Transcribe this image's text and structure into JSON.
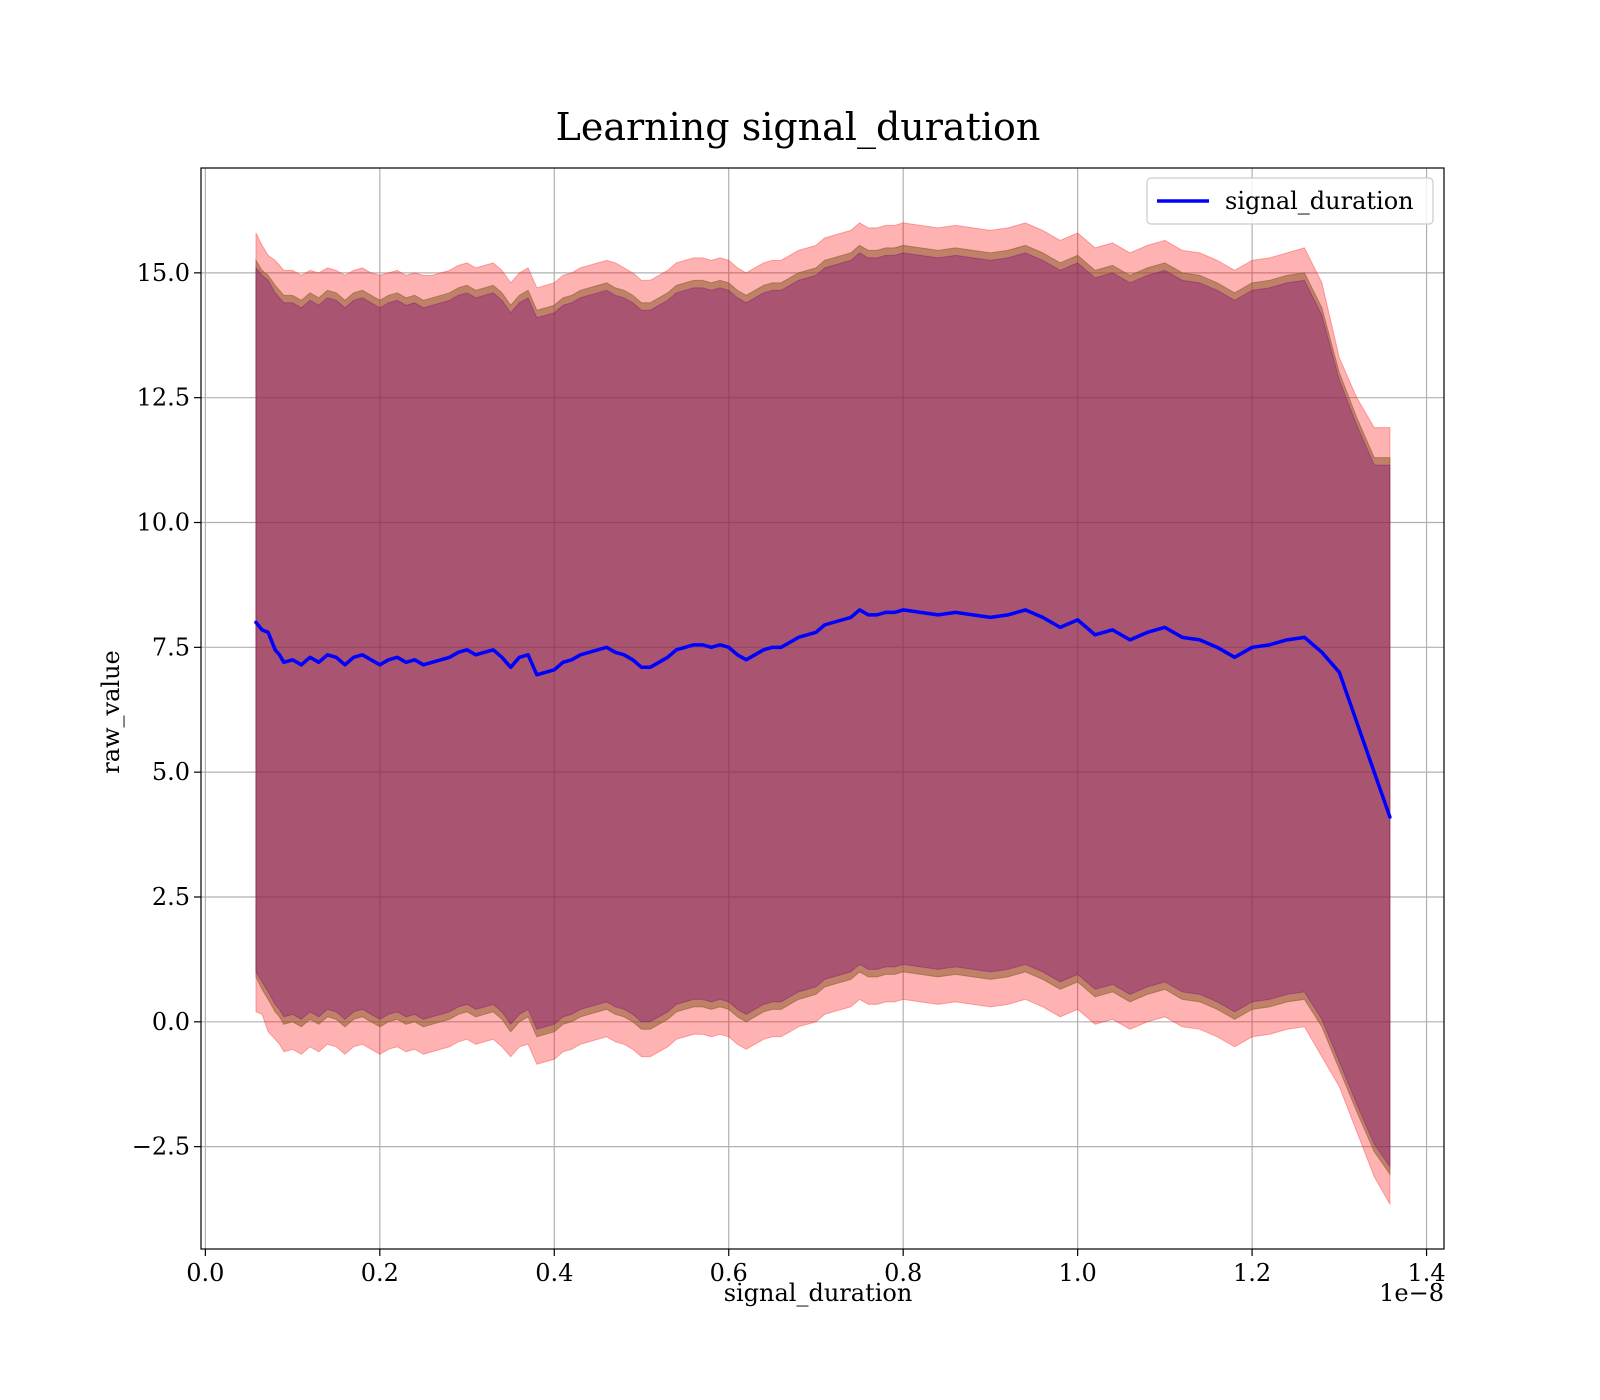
{
  "chart_data": {
    "type": "line",
    "title": "Learning signal_duration",
    "xlabel": "signal_duration",
    "ylabel": "raw_value",
    "x_offset_label": "1e−8",
    "xlim": [
      -0.005,
      1.42
    ],
    "ylim": [
      -4.55,
      17.1
    ],
    "x_ticks": [
      0.0,
      0.2,
      0.4,
      0.6,
      0.8,
      1.0,
      1.2,
      1.4
    ],
    "x_tick_labels": [
      "0.0",
      "0.2",
      "0.4",
      "0.6",
      "0.8",
      "1.0",
      "1.2",
      "1.4"
    ],
    "y_ticks": [
      -2.5,
      0.0,
      2.5,
      5.0,
      7.5,
      10.0,
      12.5,
      15.0
    ],
    "y_tick_labels": [
      "−2.5",
      "0.0",
      "2.5",
      "5.0",
      "7.5",
      "10.0",
      "12.5",
      "15.0"
    ],
    "grid": true,
    "legend_position": "top-right",
    "colors": {
      "line": "#0000ff",
      "band_outer": "#ff0000",
      "band_mid": "#8b5a2b",
      "band_inner": "#800080",
      "grid": "#b0b0b0",
      "axes": "#000000"
    },
    "series": [
      {
        "name": "signal_duration",
        "x": [
          0.058,
          0.065,
          0.072,
          0.08,
          0.085,
          0.09,
          0.1,
          0.11,
          0.12,
          0.13,
          0.14,
          0.15,
          0.16,
          0.17,
          0.18,
          0.19,
          0.2,
          0.21,
          0.22,
          0.23,
          0.24,
          0.25,
          0.26,
          0.27,
          0.28,
          0.29,
          0.3,
          0.31,
          0.32,
          0.33,
          0.34,
          0.35,
          0.36,
          0.37,
          0.38,
          0.39,
          0.4,
          0.41,
          0.42,
          0.43,
          0.44,
          0.45,
          0.46,
          0.47,
          0.48,
          0.49,
          0.5,
          0.51,
          0.52,
          0.53,
          0.54,
          0.55,
          0.56,
          0.57,
          0.58,
          0.59,
          0.6,
          0.61,
          0.62,
          0.63,
          0.64,
          0.65,
          0.66,
          0.67,
          0.68,
          0.69,
          0.7,
          0.71,
          0.72,
          0.73,
          0.74,
          0.75,
          0.76,
          0.77,
          0.78,
          0.79,
          0.8,
          0.82,
          0.84,
          0.86,
          0.88,
          0.9,
          0.92,
          0.94,
          0.96,
          0.98,
          1.0,
          1.02,
          1.04,
          1.06,
          1.08,
          1.1,
          1.12,
          1.14,
          1.16,
          1.18,
          1.2,
          1.22,
          1.24,
          1.26,
          1.28,
          1.3,
          1.32,
          1.34,
          1.358
        ],
        "y": [
          8.0,
          7.85,
          7.8,
          7.45,
          7.35,
          7.2,
          7.25,
          7.15,
          7.3,
          7.2,
          7.35,
          7.3,
          7.15,
          7.3,
          7.35,
          7.25,
          7.15,
          7.25,
          7.3,
          7.2,
          7.25,
          7.15,
          7.2,
          7.25,
          7.3,
          7.4,
          7.45,
          7.35,
          7.4,
          7.45,
          7.3,
          7.1,
          7.3,
          7.35,
          6.95,
          7.0,
          7.05,
          7.2,
          7.25,
          7.35,
          7.4,
          7.45,
          7.5,
          7.4,
          7.35,
          7.25,
          7.1,
          7.1,
          7.2,
          7.3,
          7.45,
          7.5,
          7.55,
          7.55,
          7.5,
          7.55,
          7.5,
          7.35,
          7.25,
          7.35,
          7.45,
          7.5,
          7.5,
          7.6,
          7.7,
          7.75,
          7.8,
          7.95,
          8.0,
          8.05,
          8.1,
          8.25,
          8.15,
          8.15,
          8.2,
          8.2,
          8.25,
          8.2,
          8.15,
          8.2,
          8.15,
          8.1,
          8.15,
          8.25,
          8.1,
          7.9,
          8.05,
          7.75,
          7.85,
          7.65,
          7.8,
          7.9,
          7.7,
          7.65,
          7.5,
          7.3,
          7.5,
          7.55,
          7.65,
          7.7,
          7.4,
          7.0,
          6.0,
          5.0,
          4.1
        ]
      }
    ],
    "bands": [
      {
        "color": "#ff0000",
        "opacity": 0.3,
        "upper": [
          15.8,
          15.55,
          15.35,
          15.25,
          15.15,
          15.05,
          15.05,
          14.95,
          15.05,
          15.0,
          15.1,
          15.05,
          14.95,
          15.05,
          15.1,
          15.0,
          14.95,
          15.0,
          15.05,
          14.95,
          15.0,
          14.95,
          14.95,
          15.0,
          15.05,
          15.15,
          15.2,
          15.1,
          15.15,
          15.2,
          15.05,
          14.8,
          15.0,
          15.1,
          14.7,
          14.75,
          14.8,
          14.95,
          15.0,
          15.1,
          15.15,
          15.2,
          15.25,
          15.2,
          15.1,
          15.0,
          14.85,
          14.85,
          14.95,
          15.05,
          15.2,
          15.25,
          15.3,
          15.3,
          15.25,
          15.3,
          15.25,
          15.1,
          15.0,
          15.1,
          15.2,
          15.25,
          15.25,
          15.35,
          15.45,
          15.5,
          15.55,
          15.7,
          15.75,
          15.8,
          15.85,
          16.0,
          15.9,
          15.9,
          15.95,
          15.95,
          16.0,
          15.95,
          15.9,
          15.95,
          15.9,
          15.85,
          15.9,
          16.0,
          15.85,
          15.65,
          15.8,
          15.5,
          15.6,
          15.4,
          15.55,
          15.65,
          15.45,
          15.4,
          15.25,
          15.05,
          15.25,
          15.3,
          15.4,
          15.5,
          14.8,
          13.3,
          12.5,
          11.9,
          11.9
        ],
        "lower": [
          0.2,
          0.15,
          -0.2,
          -0.35,
          -0.45,
          -0.6,
          -0.55,
          -0.65,
          -0.5,
          -0.6,
          -0.45,
          -0.5,
          -0.65,
          -0.5,
          -0.45,
          -0.55,
          -0.65,
          -0.55,
          -0.5,
          -0.6,
          -0.55,
          -0.65,
          -0.6,
          -0.55,
          -0.5,
          -0.4,
          -0.35,
          -0.45,
          -0.4,
          -0.35,
          -0.5,
          -0.7,
          -0.5,
          -0.45,
          -0.85,
          -0.8,
          -0.75,
          -0.6,
          -0.55,
          -0.45,
          -0.4,
          -0.35,
          -0.3,
          -0.4,
          -0.45,
          -0.55,
          -0.7,
          -0.7,
          -0.6,
          -0.5,
          -0.35,
          -0.3,
          -0.25,
          -0.25,
          -0.3,
          -0.25,
          -0.3,
          -0.45,
          -0.55,
          -0.45,
          -0.35,
          -0.3,
          -0.3,
          -0.2,
          -0.1,
          -0.05,
          0.0,
          0.15,
          0.2,
          0.25,
          0.3,
          0.45,
          0.35,
          0.35,
          0.4,
          0.4,
          0.45,
          0.4,
          0.35,
          0.4,
          0.35,
          0.3,
          0.35,
          0.45,
          0.3,
          0.1,
          0.25,
          -0.05,
          0.05,
          -0.15,
          0.0,
          0.1,
          -0.1,
          -0.15,
          -0.3,
          -0.5,
          -0.3,
          -0.25,
          -0.15,
          -0.1,
          -0.7,
          -1.3,
          -2.2,
          -3.1,
          -3.65
        ]
      },
      {
        "color": "#8b5a2b",
        "opacity": 0.55,
        "upper": [
          15.25,
          15.05,
          14.95,
          14.75,
          14.65,
          14.55,
          14.55,
          14.45,
          14.6,
          14.5,
          14.65,
          14.6,
          14.45,
          14.6,
          14.65,
          14.55,
          14.45,
          14.55,
          14.6,
          14.5,
          14.55,
          14.45,
          14.5,
          14.55,
          14.6,
          14.7,
          14.75,
          14.65,
          14.7,
          14.75,
          14.6,
          14.35,
          14.55,
          14.65,
          14.25,
          14.3,
          14.35,
          14.5,
          14.55,
          14.65,
          14.7,
          14.75,
          14.8,
          14.7,
          14.65,
          14.55,
          14.4,
          14.4,
          14.5,
          14.6,
          14.75,
          14.8,
          14.85,
          14.85,
          14.8,
          14.85,
          14.8,
          14.65,
          14.55,
          14.65,
          14.75,
          14.8,
          14.8,
          14.9,
          15.0,
          15.05,
          15.1,
          15.25,
          15.3,
          15.35,
          15.4,
          15.55,
          15.45,
          15.45,
          15.5,
          15.5,
          15.55,
          15.5,
          15.45,
          15.5,
          15.45,
          15.4,
          15.45,
          15.55,
          15.4,
          15.2,
          15.35,
          15.05,
          15.15,
          14.95,
          15.1,
          15.2,
          15.0,
          14.95,
          14.8,
          14.6,
          14.8,
          14.85,
          14.95,
          15.0,
          14.3,
          13.0,
          12.1,
          11.3,
          11.3
        ],
        "lower": [
          0.9,
          0.65,
          0.45,
          0.2,
          0.1,
          -0.05,
          0.0,
          -0.1,
          0.05,
          -0.05,
          0.1,
          0.05,
          -0.1,
          0.05,
          0.1,
          0.0,
          -0.1,
          0.0,
          0.05,
          -0.05,
          0.0,
          -0.1,
          -0.05,
          0.0,
          0.05,
          0.15,
          0.2,
          0.1,
          0.15,
          0.2,
          0.05,
          -0.2,
          0.0,
          0.1,
          -0.3,
          -0.25,
          -0.2,
          -0.05,
          0.0,
          0.1,
          0.15,
          0.2,
          0.25,
          0.15,
          0.1,
          0.0,
          -0.15,
          -0.15,
          -0.05,
          0.05,
          0.2,
          0.25,
          0.3,
          0.3,
          0.25,
          0.3,
          0.25,
          0.1,
          0.0,
          0.1,
          0.2,
          0.25,
          0.25,
          0.35,
          0.45,
          0.5,
          0.55,
          0.7,
          0.75,
          0.8,
          0.85,
          1.0,
          0.9,
          0.9,
          0.95,
          0.95,
          1.0,
          0.95,
          0.9,
          0.95,
          0.9,
          0.85,
          0.9,
          1.0,
          0.85,
          0.65,
          0.8,
          0.5,
          0.6,
          0.4,
          0.55,
          0.65,
          0.45,
          0.4,
          0.25,
          0.05,
          0.25,
          0.3,
          0.4,
          0.45,
          -0.1,
          -0.95,
          -1.8,
          -2.6,
          -3.05
        ]
      },
      {
        "color": "#800080",
        "opacity": 0.35,
        "upper": [
          15.1,
          14.95,
          14.85,
          14.6,
          14.5,
          14.4,
          14.4,
          14.3,
          14.45,
          14.35,
          14.5,
          14.45,
          14.3,
          14.45,
          14.5,
          14.4,
          14.3,
          14.4,
          14.45,
          14.35,
          14.4,
          14.3,
          14.35,
          14.4,
          14.45,
          14.55,
          14.6,
          14.5,
          14.55,
          14.6,
          14.45,
          14.2,
          14.4,
          14.5,
          14.1,
          14.15,
          14.2,
          14.35,
          14.4,
          14.5,
          14.55,
          14.6,
          14.65,
          14.55,
          14.5,
          14.4,
          14.25,
          14.25,
          14.35,
          14.45,
          14.6,
          14.65,
          14.7,
          14.7,
          14.65,
          14.7,
          14.65,
          14.5,
          14.4,
          14.5,
          14.6,
          14.65,
          14.65,
          14.75,
          14.85,
          14.9,
          14.95,
          15.1,
          15.15,
          15.2,
          15.25,
          15.4,
          15.3,
          15.3,
          15.35,
          15.35,
          15.4,
          15.35,
          15.3,
          15.35,
          15.3,
          15.25,
          15.3,
          15.4,
          15.25,
          15.05,
          15.2,
          14.9,
          15.0,
          14.8,
          14.95,
          15.05,
          14.85,
          14.8,
          14.65,
          14.45,
          14.65,
          14.7,
          14.8,
          14.85,
          14.15,
          12.85,
          11.95,
          11.15,
          11.15
        ],
        "lower": [
          1.0,
          0.8,
          0.6,
          0.35,
          0.25,
          0.1,
          0.15,
          0.05,
          0.2,
          0.1,
          0.25,
          0.2,
          0.05,
          0.2,
          0.25,
          0.15,
          0.05,
          0.15,
          0.2,
          0.1,
          0.15,
          0.05,
          0.1,
          0.15,
          0.2,
          0.3,
          0.35,
          0.25,
          0.3,
          0.35,
          0.2,
          -0.05,
          0.15,
          0.25,
          -0.15,
          -0.1,
          -0.05,
          0.1,
          0.15,
          0.25,
          0.3,
          0.35,
          0.4,
          0.3,
          0.25,
          0.15,
          0.0,
          0.0,
          0.1,
          0.2,
          0.35,
          0.4,
          0.45,
          0.45,
          0.4,
          0.45,
          0.4,
          0.25,
          0.15,
          0.25,
          0.35,
          0.4,
          0.4,
          0.5,
          0.6,
          0.65,
          0.7,
          0.85,
          0.9,
          0.95,
          1.0,
          1.15,
          1.05,
          1.05,
          1.1,
          1.1,
          1.15,
          1.1,
          1.05,
          1.1,
          1.05,
          1.0,
          1.05,
          1.15,
          1.0,
          0.8,
          0.95,
          0.65,
          0.75,
          0.55,
          0.7,
          0.8,
          0.6,
          0.55,
          0.4,
          0.2,
          0.4,
          0.45,
          0.55,
          0.6,
          0.05,
          -0.8,
          -1.65,
          -2.45,
          -2.9
        ]
      }
    ]
  }
}
